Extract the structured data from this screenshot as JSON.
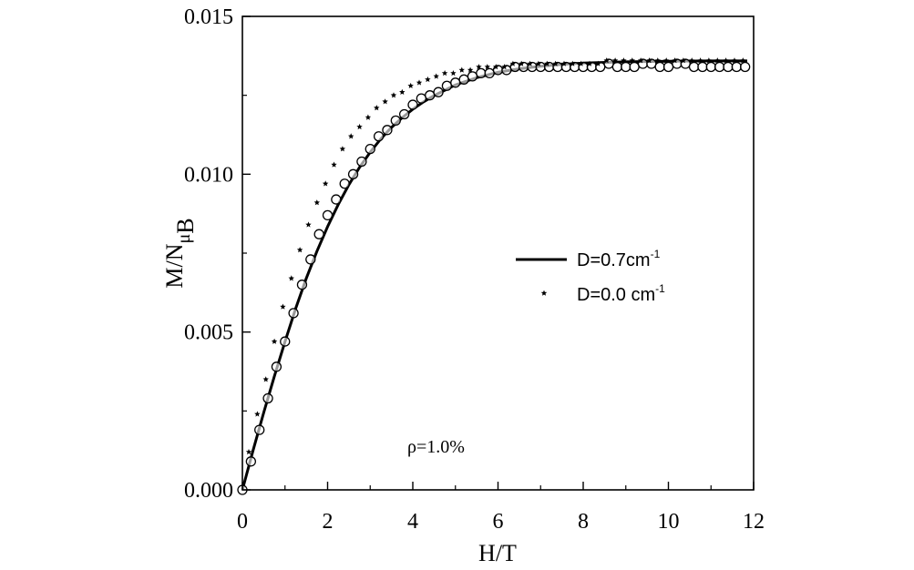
{
  "chart_data": {
    "type": "scatter",
    "xlabel": "H/T",
    "ylabel_main": "M/N",
    "ylabel_mu": "μ",
    "ylabel_sub": "B",
    "annotation": "ρ=1.0%",
    "xlim": [
      0,
      12
    ],
    "ylim": [
      0,
      0.015
    ],
    "x_ticks": [
      {
        "value": 0,
        "label": "0"
      },
      {
        "value": 2,
        "label": "2"
      },
      {
        "value": 4,
        "label": "4"
      },
      {
        "value": 6,
        "label": "6"
      },
      {
        "value": 8,
        "label": "8"
      },
      {
        "value": 10,
        "label": "10"
      },
      {
        "value": 12,
        "label": "12"
      }
    ],
    "y_ticks": [
      {
        "value": 0,
        "label": "0.000"
      },
      {
        "value": 0.005,
        "label": "0.005"
      },
      {
        "value": 0.01,
        "label": "0.010"
      },
      {
        "value": 0.015,
        "label": "0.015"
      }
    ],
    "legend": {
      "placement": "center-right",
      "entries": [
        {
          "series": "fit",
          "label_main": "D=0.7cm",
          "label_sup": "-1"
        },
        {
          "series": "stars",
          "label_main": "D=0.0 cm",
          "label_sup": "-1"
        }
      ]
    },
    "series": [
      {
        "id": "fit",
        "style": "line",
        "x": [
          0,
          0.25,
          0.5,
          0.75,
          1.0,
          1.25,
          1.5,
          1.75,
          2.0,
          2.25,
          2.5,
          2.75,
          3.0,
          3.25,
          3.5,
          3.75,
          4.0,
          4.25,
          4.5,
          4.75,
          5.0,
          5.5,
          6.0,
          6.5,
          7.0,
          7.5,
          8.0,
          9.0,
          10.0,
          11.0,
          11.85
        ],
        "y": [
          0,
          0.00125,
          0.00245,
          0.0036,
          0.0047,
          0.00574,
          0.0067,
          0.00756,
          0.00834,
          0.00904,
          0.00967,
          0.01022,
          0.0107,
          0.01112,
          0.01148,
          0.01179,
          0.01206,
          0.01229,
          0.01249,
          0.01266,
          0.01283,
          0.01306,
          0.01323,
          0.01334,
          0.01342,
          0.01348,
          0.01352,
          0.01356,
          0.01358,
          0.01359,
          0.01359
        ]
      },
      {
        "id": "circles",
        "style": "open-circle",
        "x": [
          0.0,
          0.2,
          0.4,
          0.6,
          0.8,
          1.0,
          1.2,
          1.4,
          1.6,
          1.8,
          2.0,
          2.2,
          2.4,
          2.6,
          2.8,
          3.0,
          3.2,
          3.4,
          3.6,
          3.8,
          4.0,
          4.2,
          4.4,
          4.6,
          4.8,
          5.0,
          5.2,
          5.4,
          5.6,
          5.8,
          6.0,
          6.2,
          6.4,
          6.6,
          6.8,
          7.0,
          7.2,
          7.4,
          7.6,
          7.8,
          8.0,
          8.2,
          8.4,
          8.6,
          8.8,
          9.0,
          9.2,
          9.4,
          9.6,
          9.8,
          10.0,
          10.2,
          10.4,
          10.6,
          10.8,
          11.0,
          11.2,
          11.4,
          11.6,
          11.8
        ],
        "y": [
          0.0,
          0.0009,
          0.0019,
          0.0029,
          0.0039,
          0.0047,
          0.0056,
          0.0065,
          0.0073,
          0.0081,
          0.0087,
          0.0092,
          0.0097,
          0.01,
          0.0104,
          0.0108,
          0.0112,
          0.0114,
          0.0117,
          0.0119,
          0.0122,
          0.0124,
          0.0125,
          0.0126,
          0.0128,
          0.0129,
          0.013,
          0.0131,
          0.0132,
          0.0132,
          0.0133,
          0.0133,
          0.0134,
          0.0134,
          0.0134,
          0.0134,
          0.0134,
          0.0134,
          0.0134,
          0.0134,
          0.0134,
          0.0134,
          0.0134,
          0.0135,
          0.0134,
          0.0134,
          0.0134,
          0.0135,
          0.0135,
          0.0134,
          0.0134,
          0.0135,
          0.0135,
          0.0134,
          0.0134,
          0.0134,
          0.0134,
          0.0134,
          0.0134,
          0.0134
        ]
      },
      {
        "id": "stars",
        "style": "star",
        "x": [
          0.15,
          0.35,
          0.55,
          0.75,
          0.95,
          1.15,
          1.35,
          1.55,
          1.75,
          1.95,
          2.15,
          2.35,
          2.55,
          2.75,
          2.95,
          3.15,
          3.35,
          3.55,
          3.75,
          3.95,
          4.15,
          4.35,
          4.55,
          4.75,
          4.95,
          5.15,
          5.35,
          5.55,
          5.75,
          5.95,
          6.15,
          6.35,
          6.55,
          6.75,
          6.95,
          7.15,
          7.35,
          7.55,
          7.75,
          7.95,
          8.15,
          8.35,
          8.55,
          8.75,
          8.95,
          9.15,
          9.35,
          9.55,
          9.75,
          9.95,
          10.15,
          10.35,
          10.55,
          10.75,
          10.95,
          11.15,
          11.35,
          11.55,
          11.75
        ],
        "y": [
          0.0012,
          0.0024,
          0.0035,
          0.0047,
          0.0058,
          0.0067,
          0.0076,
          0.0084,
          0.0091,
          0.0097,
          0.0103,
          0.0108,
          0.0112,
          0.0115,
          0.0118,
          0.0121,
          0.0123,
          0.0125,
          0.0126,
          0.0128,
          0.0129,
          0.013,
          0.0131,
          0.0132,
          0.0132,
          0.0133,
          0.0133,
          0.0134,
          0.0134,
          0.0134,
          0.0134,
          0.0135,
          0.0135,
          0.0135,
          0.0135,
          0.0135,
          0.0135,
          0.0135,
          0.0135,
          0.0135,
          0.0135,
          0.0135,
          0.0136,
          0.0136,
          0.0136,
          0.0136,
          0.0136,
          0.0136,
          0.0136,
          0.0136,
          0.0136,
          0.0136,
          0.0136,
          0.0136,
          0.0136,
          0.0136,
          0.0136,
          0.0136,
          0.0136
        ]
      }
    ]
  }
}
